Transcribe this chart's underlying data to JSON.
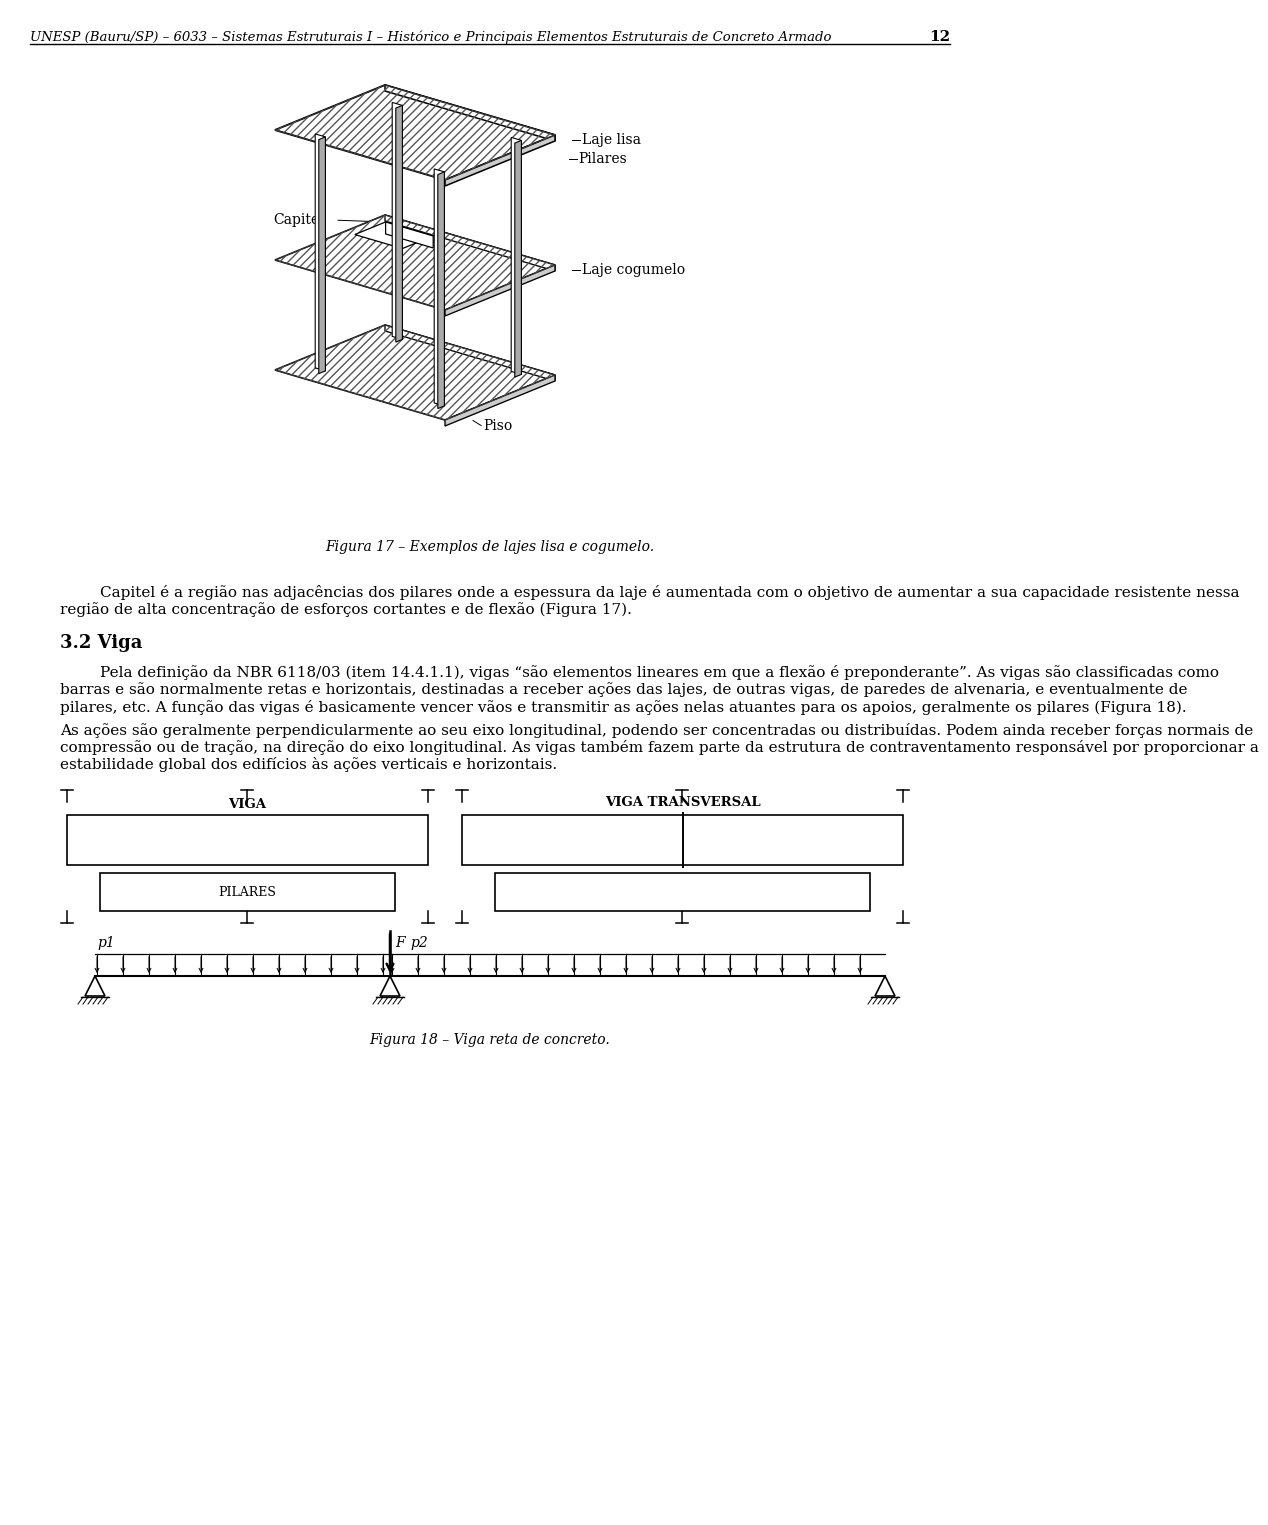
{
  "header_text": "UNESP (Bauru/SP) – 6033 – Sistemas Estruturais I – Histórico e Principais Elementos Estruturais de Concreto Armado",
  "page_number": "12",
  "fig17_caption": "Figura 17 – Exemplos de lajes lisa e cogumelo.",
  "fig18_caption": "Figura 18 – Viga reta de concreto.",
  "paragraph1": "Capitel é a região nas adjacências dos pilares onde a espessura da laje é aumentada com o objetivo de aumentar a sua capacidade resistente nessa região de alta concentração de esforços cortantes e de flexão (Figura 17).",
  "section_title": "3.2 Viga",
  "paragraph2": "Pela definição da NBR 6118/03 (item 14.4.1.1), vigas “são elementos lineares em que a flexão é preponderante”. As vigas são classificadas como barras e são normalmente retas e horizontais, destinadas a receber ações das lajes, de outras vigas, de paredes de alvenaria, e eventualmente de pilares, etc. A função das vigas é basicamente vencer vãos e transmitir as ações nelas atuantes para os apoios, geralmente os pilares (Figura 18).",
  "paragraph3": "As ações são geralmente perpendicularmente ao seu eixo longitudinal, podendo ser concentradas ou distribuídas. Podem ainda receber forças normais de compressão ou de tração, na direção do eixo longitudinal. As vigas também fazem parte da estrutura de contraventamento responsável por proporcionar a estabilidade global dos edifícios às ações verticais e horizontais.",
  "bg_color": "#ffffff",
  "text_color": "#000000",
  "label_laje_lisa": "Laje lisa",
  "label_pilares": "Pilares",
  "label_laje_cogumelo": "Laje cogumelo",
  "label_capitel": "Capitel",
  "label_piso": "Piso",
  "label_viga": "VIGA",
  "label_viga_transversal": "VIGA TRANSVERSAL",
  "label_pilares2": "PILARES",
  "label_p1": "p1",
  "label_p2": "p2",
  "label_F": "F"
}
